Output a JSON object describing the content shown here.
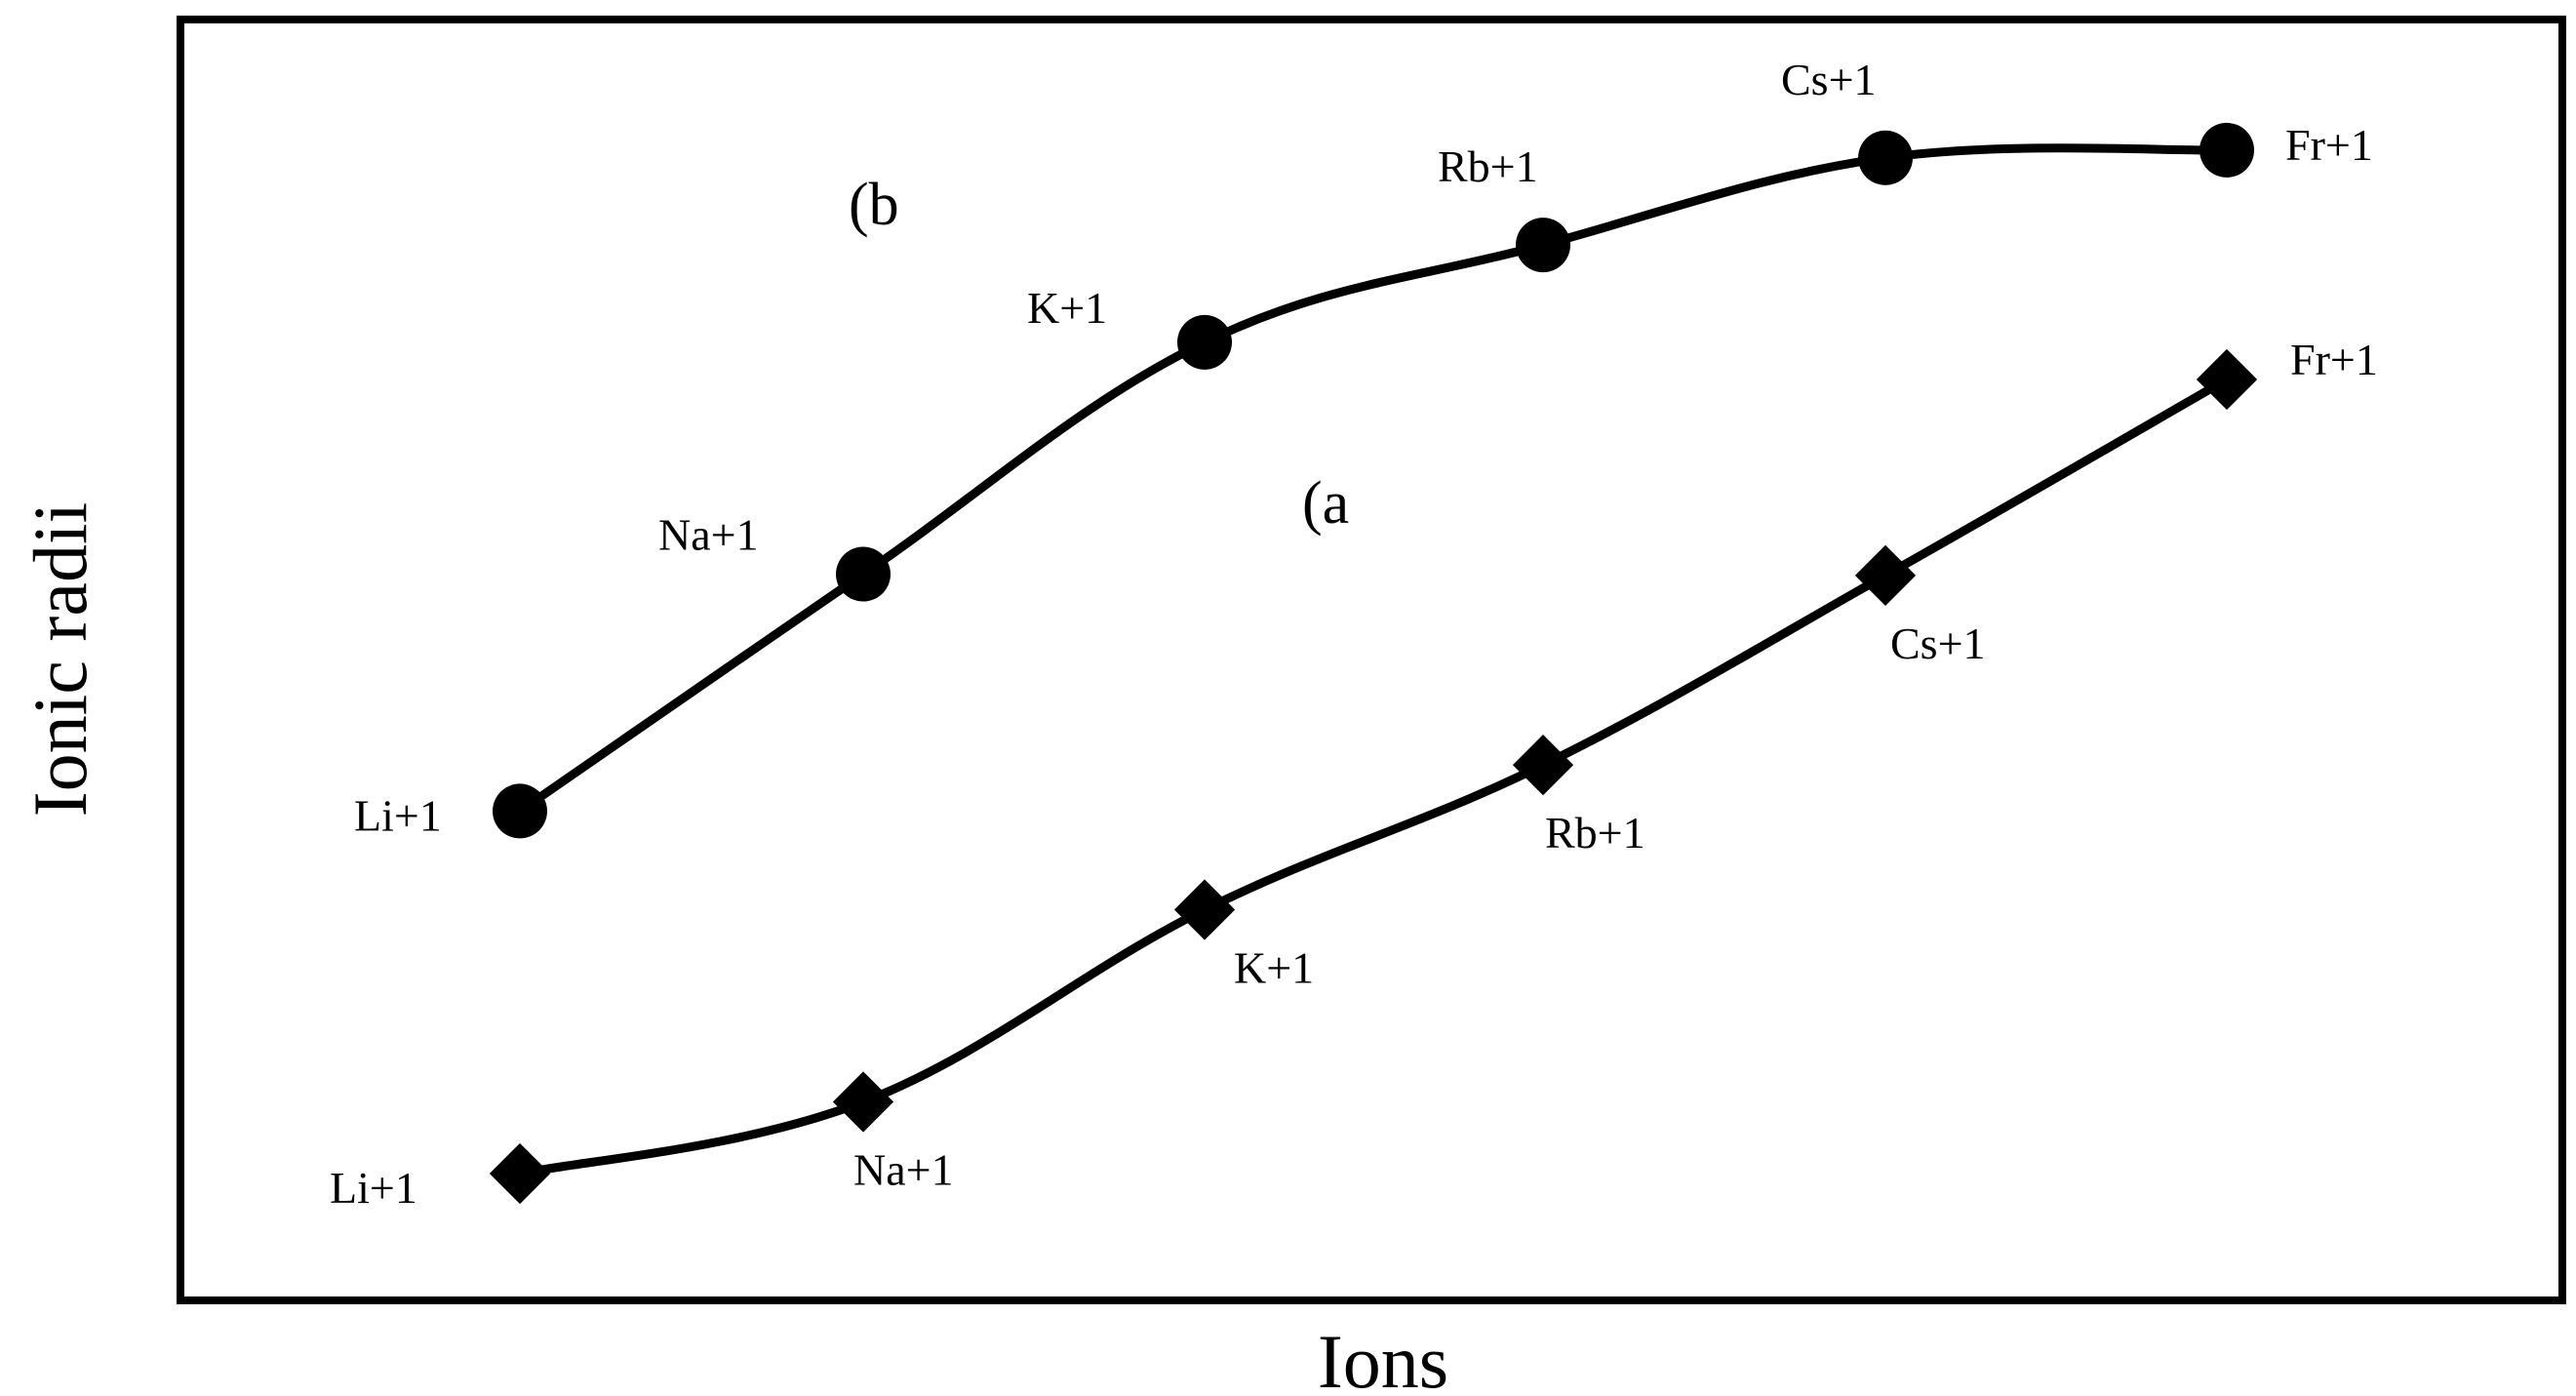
{
  "chart_data": {
    "type": "line",
    "title": "",
    "xlabel": "Ions",
    "ylabel": "Ionic radii",
    "grid": false,
    "legend": "none",
    "ylim": [
      0,
      100
    ],
    "x": [
      "Li+1",
      "Na+1",
      "K+1",
      "Rb+1",
      "Cs+1",
      "Fr+1"
    ],
    "series": [
      {
        "tag": "(b",
        "marker": "circle",
        "labels": [
          "Li+1",
          "Na+1",
          "K+1",
          "Rb+1",
          "Cs+1",
          "Fr+1"
        ],
        "values": [
          38.2,
          56.7,
          74.8,
          82.4,
          89.2,
          89.8
        ]
      },
      {
        "tag": "(a",
        "marker": "diamond",
        "labels": [
          "Li+1",
          "Na+1",
          "K+1",
          "Rb+1",
          "Cs+1",
          "Fr+1"
        ],
        "values": [
          9.9,
          15.5,
          30.5,
          41.8,
          56.6,
          71.9
        ]
      }
    ],
    "colors": {
      "line": "#000000",
      "marker": "#000000",
      "frame": "#000000"
    }
  }
}
